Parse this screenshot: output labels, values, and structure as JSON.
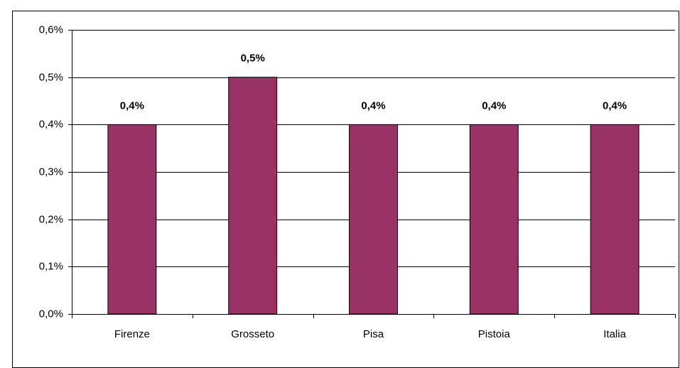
{
  "chart_data": {
    "type": "bar",
    "categories": [
      "Firenze",
      "Grosseto",
      "Pisa",
      "Pistoia",
      "Italia"
    ],
    "values": [
      0.4,
      0.5,
      0.4,
      0.4,
      0.4
    ],
    "value_labels": [
      "0,4%",
      "0,5%",
      "0,4%",
      "0,4%",
      "0,4%"
    ],
    "color": "#993366",
    "ylim": [
      0,
      0.6
    ],
    "yticks": [
      {
        "value": 0,
        "label": "0,0%"
      },
      {
        "value": 0.1,
        "label": "0,1%"
      },
      {
        "value": 0.2,
        "label": "0,2%"
      },
      {
        "value": 0.3,
        "label": "0,3%"
      },
      {
        "value": 0.4,
        "label": "0,4%"
      },
      {
        "value": 0.5,
        "label": "0,5%"
      },
      {
        "value": 0.6,
        "label": "0,6%"
      }
    ],
    "grid": true
  }
}
